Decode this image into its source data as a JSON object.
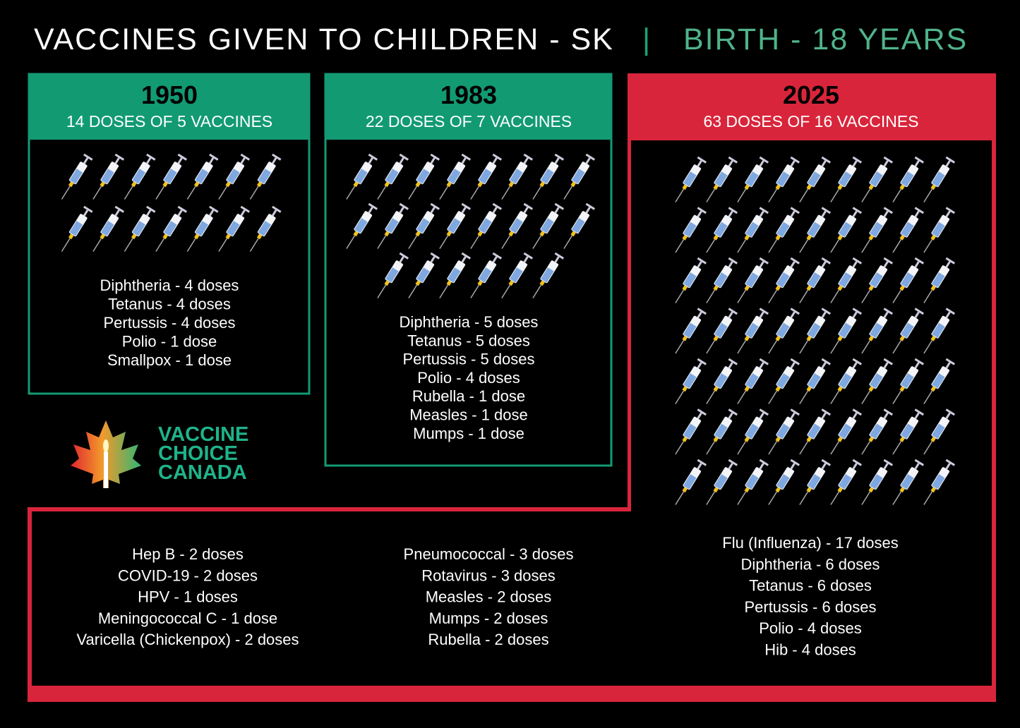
{
  "header": {
    "title": "VACCINES GIVEN TO CHILDREN - SK",
    "separator": "|",
    "subtitle": "BIRTH - 18 YEARS"
  },
  "panels": [
    {
      "year": "1950",
      "summary": "14 DOSES OF 5 VACCINES",
      "syringe_count": 14,
      "items": [
        "Diphtheria - 4 doses",
        "Tetanus - 4 doses",
        "Pertussis - 4 doses",
        "Polio - 1 dose",
        "Smallpox - 1 dose"
      ]
    },
    {
      "year": "1983",
      "summary": "22 DOSES OF 7 VACCINES",
      "syringe_count": 22,
      "items": [
        "Diphtheria - 5 doses",
        "Tetanus - 5 doses",
        "Pertussis - 5 doses",
        "Polio - 4 doses",
        "Rubella - 1 dose",
        "Measles - 1 dose",
        "Mumps - 1 dose"
      ]
    },
    {
      "year": "2025",
      "summary": "63 DOSES OF 16 VACCINES",
      "syringe_count": 63,
      "columns": [
        [
          "Hep B - 2 doses",
          "COVID-19 - 2 doses",
          "HPV - 1 doses",
          "Meningococcal C - 1 dose",
          "Varicella (Chickenpox) - 2 doses"
        ],
        [
          "Pneumococcal - 3 doses",
          "Rotavirus - 3 doses",
          "Measles - 2 doses",
          "Mumps - 2 doses",
          "Rubella - 2 doses"
        ],
        [
          "Flu (Influenza) - 17 doses",
          "Diphtheria - 6 doses",
          "Tetanus - 6 doses",
          "Pertussis - 6 doses",
          "Polio - 4 doses",
          "Hib - 4 doses"
        ]
      ]
    }
  ],
  "logo": {
    "lines": [
      "VACCINE",
      "CHOICE",
      "CANADA"
    ]
  }
}
